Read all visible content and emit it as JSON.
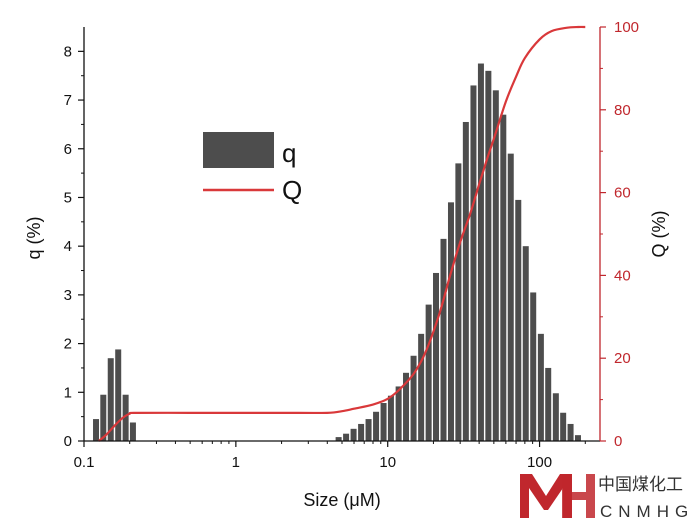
{
  "chart_data": {
    "type": "bar",
    "xlabel": "Size (μM)",
    "ylabel_left": "q (%)",
    "ylabel_right": "Q (%)",
    "x_scale": "log",
    "xlim": [
      0.1,
      250
    ],
    "ylim_left": [
      0,
      8.5
    ],
    "ylim_right": [
      0,
      100
    ],
    "x_ticks": [
      0.1,
      1,
      10,
      100
    ],
    "x_tick_labels": [
      "0.1",
      "1",
      "10",
      "100"
    ],
    "y_left_ticks": [
      0,
      1,
      2,
      3,
      4,
      5,
      6,
      7,
      8
    ],
    "y_left_tick_labels": [
      "0",
      "1",
      "2",
      "3",
      "4",
      "5",
      "6",
      "7",
      "8"
    ],
    "y_right_ticks": [
      0,
      20,
      40,
      60,
      80,
      100
    ],
    "y_right_tick_labels": [
      "0",
      "20",
      "40",
      "60",
      "80",
      "100"
    ],
    "colors": {
      "bars": "#4d4d4d",
      "cumulative": "#d9383a",
      "right_axis": "#c0272d"
    },
    "legend": {
      "position": "upper-left",
      "entries": [
        "q",
        "Q"
      ]
    },
    "series": [
      {
        "name": "q",
        "kind": "bar",
        "x": [
          0.12,
          0.134,
          0.15,
          0.168,
          0.188,
          0.21,
          4.75,
          5.32,
          5.96,
          6.68,
          7.48,
          8.38,
          9.39,
          10.5,
          11.8,
          13.2,
          14.8,
          16.6,
          18.6,
          20.8,
          23.3,
          26.1,
          29.2,
          32.7,
          36.7,
          41.1,
          46.0,
          51.5,
          57.7,
          64.6,
          72.4,
          81.1,
          90.8,
          102,
          114,
          128,
          143,
          160,
          179
        ],
        "values": [
          0.45,
          0.95,
          1.7,
          1.88,
          0.95,
          0.38,
          0.08,
          0.15,
          0.25,
          0.35,
          0.45,
          0.6,
          0.78,
          0.93,
          1.12,
          1.4,
          1.75,
          2.2,
          2.8,
          3.45,
          4.15,
          4.9,
          5.7,
          6.55,
          7.3,
          7.75,
          7.6,
          7.2,
          6.7,
          5.9,
          4.95,
          4.0,
          3.05,
          2.2,
          1.5,
          0.98,
          0.58,
          0.35,
          0.12
        ]
      },
      {
        "name": "Q",
        "kind": "line",
        "axis": "right",
        "x": [
          0.125,
          0.14,
          0.16,
          0.18,
          0.2,
          0.22,
          0.5,
          1,
          2,
          4,
          5,
          6,
          8,
          10,
          12,
          15,
          18,
          22,
          26,
          30,
          35,
          40,
          45,
          50,
          60,
          70,
          80,
          100,
          120,
          150,
          180,
          200
        ],
        "values": [
          0,
          1.5,
          3.8,
          5.6,
          6.6,
          6.8,
          6.8,
          6.8,
          6.8,
          6.8,
          7.2,
          7.8,
          8.8,
          10.2,
          12.5,
          16.5,
          22,
          31,
          40.5,
          48,
          55,
          62,
          68,
          73,
          82,
          88,
          92.5,
          97,
          99,
          99.8,
          100,
          100
        ]
      }
    ]
  },
  "watermark": {
    "chinese": "中国煤化工",
    "english": "CNMHG"
  }
}
